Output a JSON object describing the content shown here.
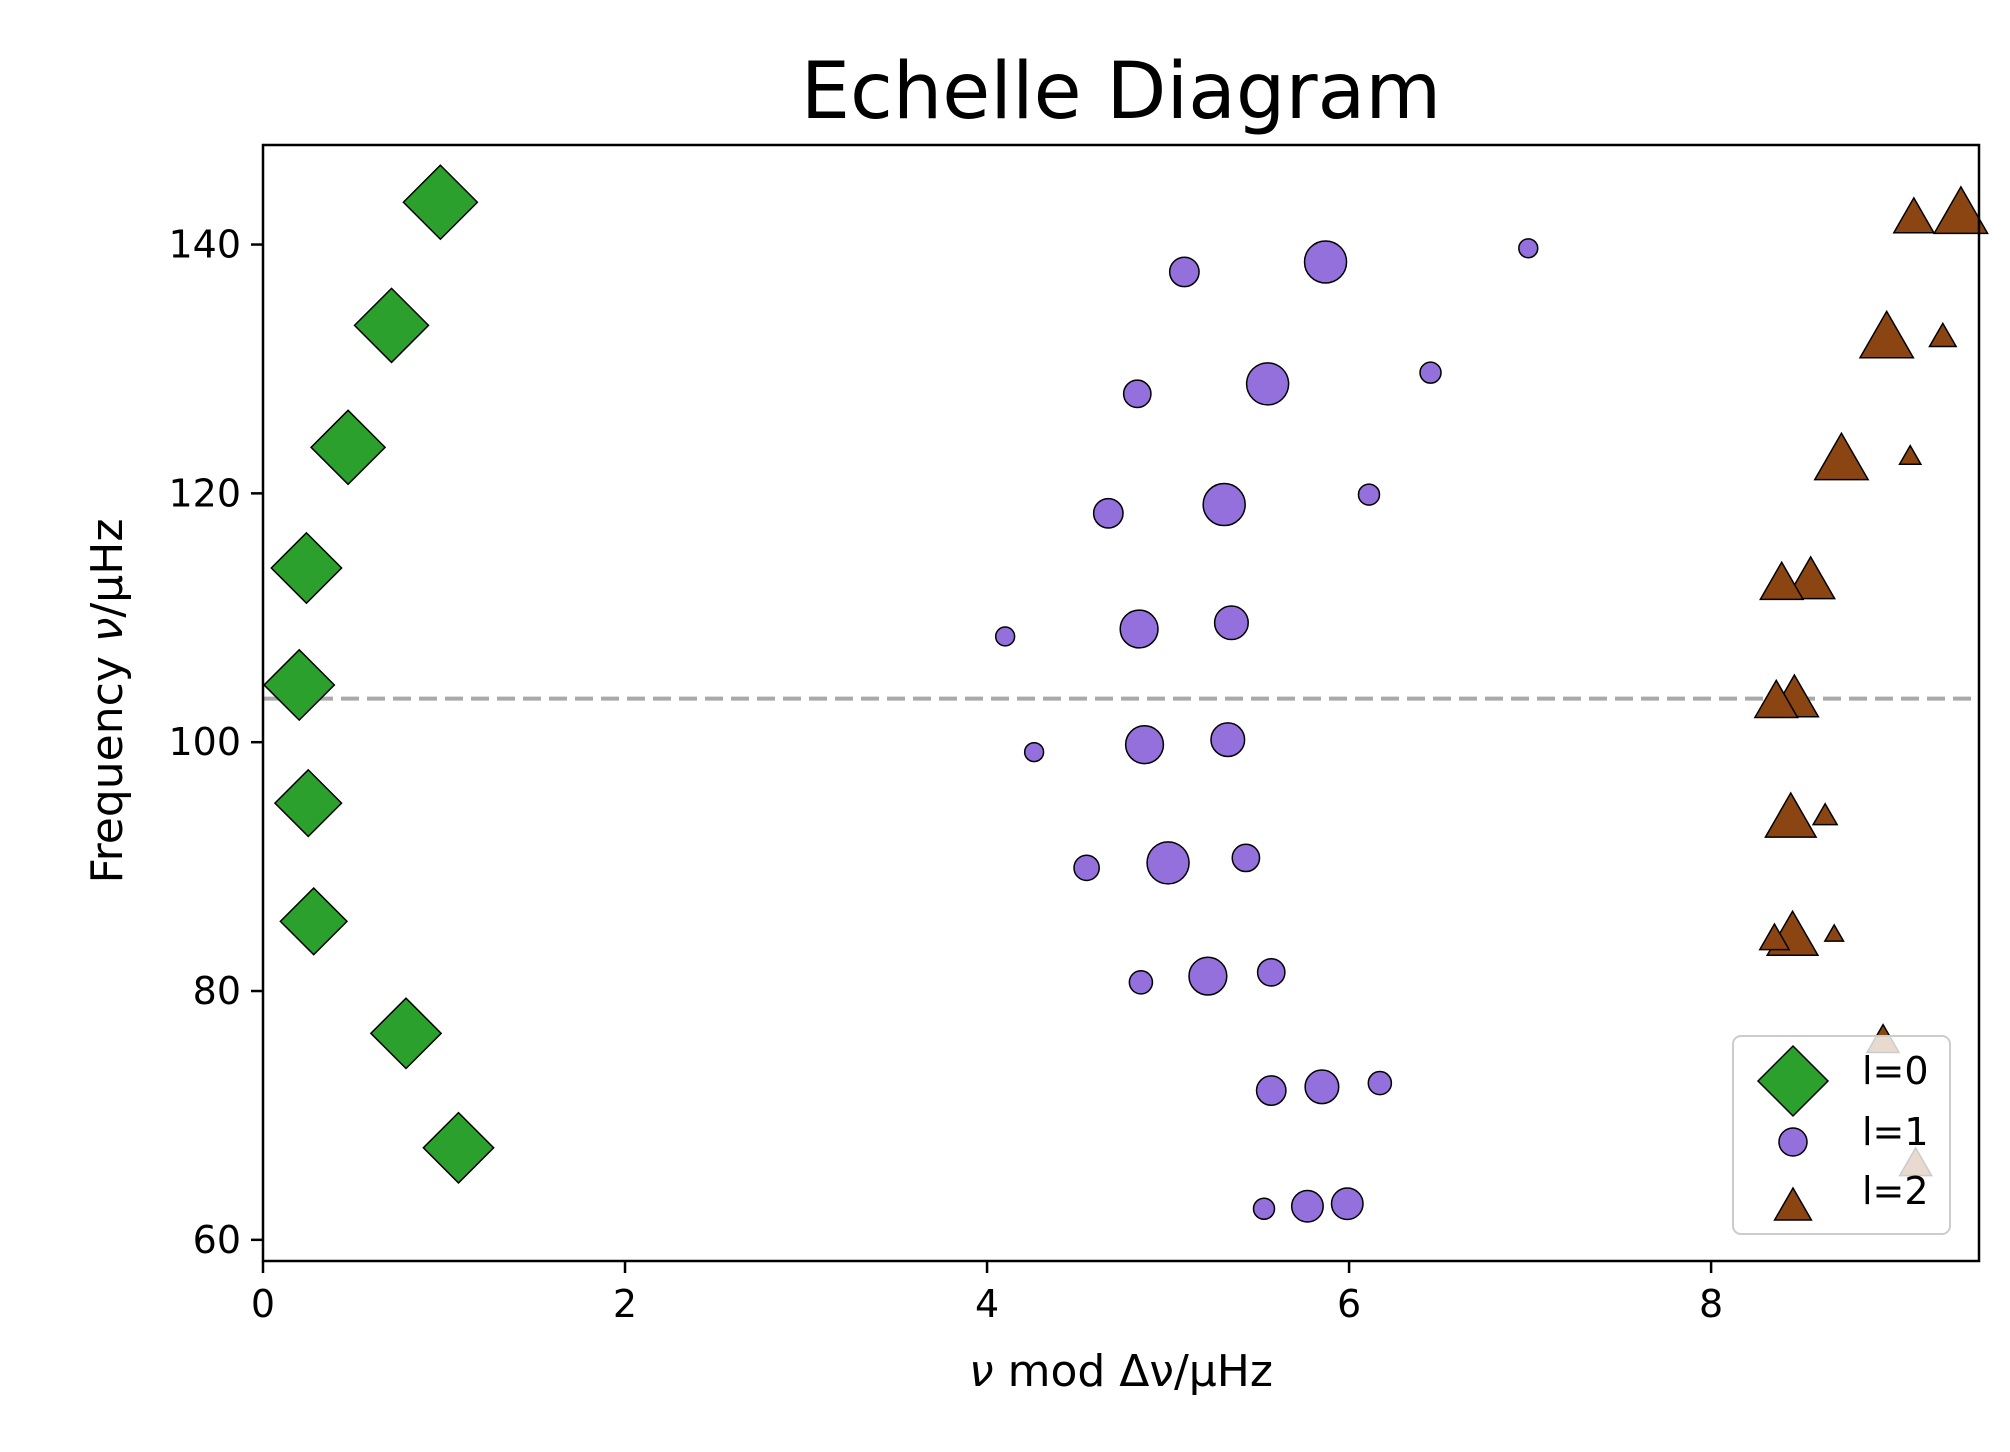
{
  "chart_data": {
    "type": "scatter",
    "title": "Echelle Diagram",
    "xlabel_var": "ν",
    "xlabel_rest": " mod Δν/μHz",
    "ylabel_prefix": "Frequency ",
    "ylabel_var": "ν",
    "ylabel_suffix": "/μHz",
    "xlim": [
      0,
      9.48
    ],
    "ylim": [
      58.3,
      148.0
    ],
    "xticks": [
      0,
      2,
      4,
      6,
      8
    ],
    "yticks": [
      60,
      80,
      100,
      120,
      140
    ],
    "numax_line": 103.5,
    "colors": {
      "l0": "#2ca02c",
      "l1": "#9370db",
      "l2": "#8b4513",
      "edge": "#000000",
      "numax": "#a9a9a9"
    },
    "legend_position": "lower right",
    "legend": [
      "l=0",
      "l=1",
      "l=2"
    ],
    "series": [
      {
        "name": "l=0",
        "marker": "diamond",
        "points": [
          {
            "x": 0.98,
            "y": 143.4,
            "s": 1.0
          },
          {
            "x": 0.71,
            "y": 133.5,
            "s": 1.0
          },
          {
            "x": 0.47,
            "y": 123.7,
            "s": 1.0
          },
          {
            "x": 0.24,
            "y": 114.0,
            "s": 0.95
          },
          {
            "x": 0.2,
            "y": 104.6,
            "s": 0.95
          },
          {
            "x": 0.25,
            "y": 95.1,
            "s": 0.9
          },
          {
            "x": 0.28,
            "y": 85.6,
            "s": 0.9
          },
          {
            "x": 0.79,
            "y": 76.6,
            "s": 0.95
          },
          {
            "x": 1.08,
            "y": 67.4,
            "s": 0.95
          }
        ]
      },
      {
        "name": "l=1",
        "marker": "circle",
        "points": [
          {
            "x": 5.87,
            "y": 138.6,
            "s": 1.0
          },
          {
            "x": 5.09,
            "y": 137.8,
            "s": 0.7
          },
          {
            "x": 6.99,
            "y": 139.7,
            "s": 0.45
          },
          {
            "x": 5.55,
            "y": 128.8,
            "s": 1.0
          },
          {
            "x": 4.83,
            "y": 128.0,
            "s": 0.65
          },
          {
            "x": 6.45,
            "y": 129.7,
            "s": 0.5
          },
          {
            "x": 5.31,
            "y": 119.1,
            "s": 1.0
          },
          {
            "x": 4.67,
            "y": 118.4,
            "s": 0.7
          },
          {
            "x": 6.11,
            "y": 119.9,
            "s": 0.5
          },
          {
            "x": 4.84,
            "y": 109.1,
            "s": 0.9
          },
          {
            "x": 5.35,
            "y": 109.6,
            "s": 0.8
          },
          {
            "x": 4.1,
            "y": 108.5,
            "s": 0.45
          },
          {
            "x": 4.87,
            "y": 99.8,
            "s": 0.9
          },
          {
            "x": 5.33,
            "y": 100.2,
            "s": 0.8
          },
          {
            "x": 4.26,
            "y": 99.2,
            "s": 0.45
          },
          {
            "x": 5.0,
            "y": 90.3,
            "s": 1.0
          },
          {
            "x": 5.43,
            "y": 90.7,
            "s": 0.65
          },
          {
            "x": 4.55,
            "y": 89.9,
            "s": 0.6
          },
          {
            "x": 5.22,
            "y": 81.2,
            "s": 0.9
          },
          {
            "x": 5.57,
            "y": 81.5,
            "s": 0.65
          },
          {
            "x": 4.85,
            "y": 80.7,
            "s": 0.55
          },
          {
            "x": 5.85,
            "y": 72.3,
            "s": 0.8
          },
          {
            "x": 5.57,
            "y": 72.0,
            "s": 0.7
          },
          {
            "x": 6.17,
            "y": 72.6,
            "s": 0.55
          },
          {
            "x": 5.77,
            "y": 62.7,
            "s": 0.75
          },
          {
            "x": 5.99,
            "y": 62.9,
            "s": 0.75
          },
          {
            "x": 5.53,
            "y": 62.5,
            "s": 0.5
          }
        ]
      },
      {
        "name": "l=2",
        "marker": "triangle",
        "points": [
          {
            "x": 9.38,
            "y": 142.3,
            "s": 1.0
          },
          {
            "x": 9.12,
            "y": 142.0,
            "s": 0.75
          },
          {
            "x": 8.97,
            "y": 132.3,
            "s": 1.0
          },
          {
            "x": 9.28,
            "y": 132.5,
            "s": 0.5
          },
          {
            "x": 8.72,
            "y": 122.5,
            "s": 1.0
          },
          {
            "x": 9.1,
            "y": 122.9,
            "s": 0.4
          },
          {
            "x": 8.55,
            "y": 112.8,
            "s": 0.9
          },
          {
            "x": 8.39,
            "y": 112.6,
            "s": 0.8
          },
          {
            "x": 8.46,
            "y": 103.3,
            "s": 0.9
          },
          {
            "x": 8.36,
            "y": 103.1,
            "s": 0.8
          },
          {
            "x": 8.44,
            "y": 93.7,
            "s": 0.95
          },
          {
            "x": 8.63,
            "y": 94.0,
            "s": 0.45
          },
          {
            "x": 8.45,
            "y": 84.2,
            "s": 0.95
          },
          {
            "x": 8.35,
            "y": 84.1,
            "s": 0.55
          },
          {
            "x": 8.68,
            "y": 84.5,
            "s": 0.35
          },
          {
            "x": 8.95,
            "y": 75.9,
            "s": 0.6
          },
          {
            "x": 9.13,
            "y": 66.0,
            "s": 0.6
          }
        ]
      }
    ]
  }
}
